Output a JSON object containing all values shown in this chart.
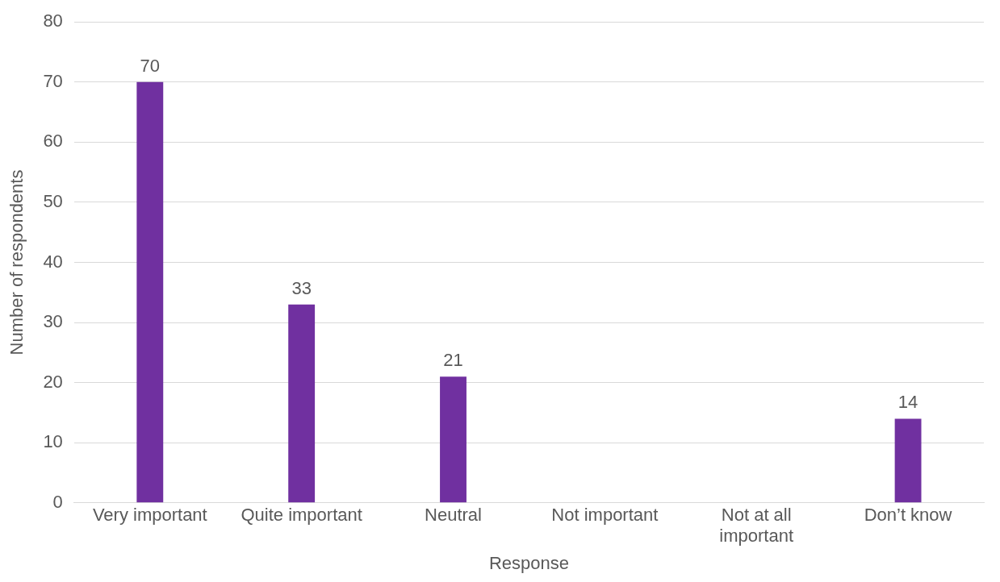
{
  "chart_data": {
    "type": "bar",
    "xlabel": "Response",
    "ylabel": "Number of respondents",
    "categories": [
      "Very important",
      "Quite important",
      "Neutral",
      "Not important",
      "Not at all important",
      "Don’t know"
    ],
    "values": [
      70,
      33,
      21,
      null,
      null,
      14
    ],
    "color": "#7030a0",
    "ylim": [
      0,
      80
    ],
    "yticks": [
      0,
      10,
      20,
      30,
      40,
      50,
      60,
      70,
      80
    ],
    "grid": "y",
    "data_labels": true,
    "legend": false
  }
}
